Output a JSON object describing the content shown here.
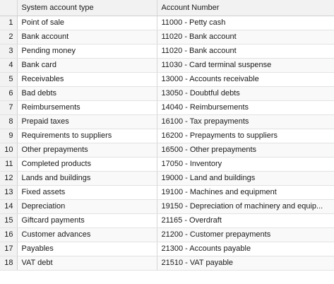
{
  "columns": {
    "type": "System account type",
    "account": "Account Number"
  },
  "rows": [
    {
      "num": "1",
      "type": "Point of sale",
      "account": "11000 - Petty cash"
    },
    {
      "num": "2",
      "type": "Bank account",
      "account": "11020 - Bank account"
    },
    {
      "num": "3",
      "type": "Pending money",
      "account": "11020 - Bank account"
    },
    {
      "num": "4",
      "type": "Bank card",
      "account": "11030 - Card terminal suspense"
    },
    {
      "num": "5",
      "type": "Receivables",
      "account": "13000 - Accounts receivable"
    },
    {
      "num": "6",
      "type": "Bad debts",
      "account": "13050 - Doubtful debts"
    },
    {
      "num": "7",
      "type": "Reimbursements",
      "account": "14040 - Reimbursements"
    },
    {
      "num": "8",
      "type": "Prepaid taxes",
      "account": "16100 - Tax prepayments"
    },
    {
      "num": "9",
      "type": "Requirements to suppliers",
      "account": "16200 - Prepayments to suppliers"
    },
    {
      "num": "10",
      "type": "Other prepayments",
      "account": "16500 - Other prepayments"
    },
    {
      "num": "11",
      "type": "Completed products",
      "account": "17050 - Inventory"
    },
    {
      "num": "12",
      "type": "Lands and buildings",
      "account": "19000 - Land and buildings"
    },
    {
      "num": "13",
      "type": "Fixed assets",
      "account": "19100 - Machines and equipment"
    },
    {
      "num": "14",
      "type": "Depreciation",
      "account": "19150 - Depreciation of machinery and equip..."
    },
    {
      "num": "15",
      "type": "Giftcard payments",
      "account": "21165 - Overdraft"
    },
    {
      "num": "16",
      "type": "Customer advances",
      "account": "21200 - Customer prepayments"
    },
    {
      "num": "17",
      "type": "Payables",
      "account": "21300 - Accounts payable"
    },
    {
      "num": "18",
      "type": "VAT debt",
      "account": "21510 - VAT payable"
    }
  ]
}
